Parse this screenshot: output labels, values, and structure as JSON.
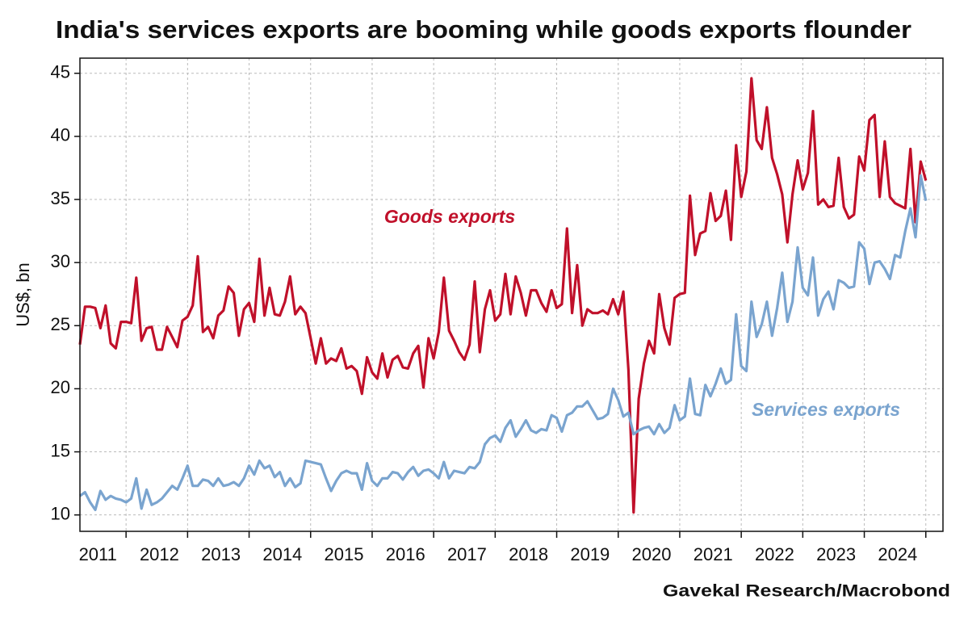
{
  "chart_data": {
    "type": "line",
    "title": "India's services exports are booming while goods exports flounder",
    "y_label": "US$, bn",
    "source": "Gavekal Research/Macrobond",
    "categories": [
      null,
      null,
      null,
      "2011",
      null,
      null,
      null,
      null,
      null,
      null,
      null,
      null,
      null,
      null,
      null,
      "2012",
      null,
      null,
      null,
      null,
      null,
      null,
      null,
      null,
      null,
      null,
      null,
      "2013",
      null,
      null,
      null,
      null,
      null,
      null,
      null,
      null,
      null,
      null,
      null,
      "2014",
      null,
      null,
      null,
      null,
      null,
      null,
      null,
      null,
      null,
      null,
      null,
      "2015",
      null,
      null,
      null,
      null,
      null,
      null,
      null,
      null,
      null,
      null,
      null,
      "2016",
      null,
      null,
      null,
      null,
      null,
      null,
      null,
      null,
      null,
      null,
      null,
      "2017",
      null,
      null,
      null,
      null,
      null,
      null,
      null,
      null,
      null,
      null,
      null,
      "2018",
      null,
      null,
      null,
      null,
      null,
      null,
      null,
      null,
      null,
      null,
      null,
      "2019",
      null,
      null,
      null,
      null,
      null,
      null,
      null,
      null,
      null,
      null,
      null,
      "2020",
      null,
      null,
      null,
      null,
      null,
      null,
      null,
      null,
      null,
      null,
      null,
      "2021",
      null,
      null,
      null,
      null,
      null,
      null,
      null,
      null,
      null,
      null,
      null,
      "2022",
      null,
      null,
      null,
      null,
      null,
      null,
      null,
      null,
      null,
      null,
      null,
      "2023",
      null,
      null,
      null,
      null,
      null,
      null,
      null,
      null,
      null,
      null,
      null,
      "2024",
      null,
      null,
      null,
      null,
      null,
      null
    ],
    "series": [
      {
        "name": "Goods exports",
        "color": "#c0102a",
        "values": [
          23.5,
          26.5,
          26.5,
          26.4,
          24.8,
          26.6,
          23.6,
          23.2,
          25.3,
          25.3,
          25.2,
          28.8,
          23.8,
          24.8,
          24.9,
          23.1,
          23.1,
          24.9,
          24.1,
          23.3,
          25.4,
          25.7,
          26.6,
          30.5,
          24.5,
          24.9,
          24.0,
          25.8,
          26.2,
          28.1,
          27.6,
          24.2,
          26.3,
          26.8,
          25.3,
          30.3,
          25.8,
          28.0,
          25.9,
          25.8,
          26.9,
          28.9,
          25.9,
          26.5,
          26.0,
          24.0,
          22.0,
          24.0,
          22.0,
          22.4,
          22.2,
          23.2,
          21.6,
          21.8,
          21.4,
          19.6,
          22.5,
          21.3,
          20.8,
          22.8,
          20.9,
          22.3,
          22.6,
          21.7,
          21.6,
          22.8,
          23.4,
          20.1,
          24.0,
          22.4,
          24.5,
          28.8,
          24.6,
          23.8,
          22.9,
          22.3,
          23.5,
          28.5,
          22.9,
          26.3,
          27.8,
          25.4,
          25.9,
          29.1,
          25.9,
          28.9,
          27.6,
          25.8,
          27.8,
          27.8,
          26.8,
          26.1,
          27.8,
          26.4,
          26.7,
          32.7,
          26.0,
          29.8,
          25.0,
          26.3,
          26.0,
          26.0,
          26.2,
          25.9,
          27.1,
          25.9,
          27.7,
          21.5,
          10.2,
          19.2,
          22.0,
          23.8,
          22.8,
          27.5,
          24.8,
          23.5,
          27.2,
          27.5,
          27.6,
          35.3,
          30.6,
          32.3,
          32.5,
          35.5,
          33.3,
          33.7,
          35.7,
          31.8,
          39.3,
          35.2,
          37.2,
          44.6,
          39.7,
          39.0,
          42.3,
          38.3,
          37.0,
          35.4,
          31.6,
          35.4,
          38.1,
          35.8,
          37.1,
          42.0,
          34.6,
          35.0,
          34.4,
          34.5,
          38.3,
          34.4,
          33.5,
          33.8,
          38.4,
          37.3,
          41.3,
          41.7,
          35.2,
          39.6,
          35.2,
          34.7,
          34.5,
          34.3,
          39.0,
          33.2,
          38.0,
          36.5
        ]
      },
      {
        "name": "Services exports",
        "color": "#7aa4cf",
        "values": [
          11.5,
          11.8,
          11.0,
          10.4,
          11.9,
          11.2,
          11.5,
          11.3,
          11.2,
          11.0,
          11.3,
          12.9,
          10.5,
          12.0,
          10.8,
          11.0,
          11.3,
          11.8,
          12.3,
          12.0,
          12.9,
          13.9,
          12.3,
          12.3,
          12.8,
          12.7,
          12.3,
          12.9,
          12.3,
          12.4,
          12.6,
          12.3,
          12.9,
          13.9,
          13.2,
          14.3,
          13.7,
          13.9,
          13.0,
          13.4,
          12.3,
          12.9,
          12.2,
          12.5,
          14.3,
          14.2,
          14.1,
          14.0,
          12.9,
          11.9,
          12.7,
          13.3,
          13.5,
          13.3,
          13.3,
          12.0,
          14.1,
          12.7,
          12.3,
          12.9,
          12.9,
          13.4,
          13.3,
          12.8,
          13.4,
          13.8,
          13.1,
          13.5,
          13.6,
          13.3,
          12.9,
          14.2,
          12.9,
          13.5,
          13.4,
          13.3,
          13.8,
          13.7,
          14.2,
          15.6,
          16.1,
          16.3,
          15.8,
          16.9,
          17.5,
          16.2,
          16.8,
          17.5,
          16.7,
          16.5,
          16.8,
          16.7,
          17.9,
          17.7,
          16.6,
          17.9,
          18.1,
          18.6,
          18.6,
          19.0,
          18.3,
          17.6,
          17.7,
          18.0,
          20.0,
          19.1,
          17.8,
          18.1,
          16.4,
          16.7,
          16.9,
          17.0,
          16.4,
          17.2,
          16.5,
          16.9,
          18.7,
          17.5,
          17.8,
          20.8,
          18.0,
          17.9,
          20.3,
          19.4,
          20.4,
          21.6,
          20.4,
          20.7,
          25.9,
          21.8,
          21.4,
          26.9,
          24.1,
          25.1,
          26.9,
          24.2,
          26.4,
          29.2,
          25.3,
          26.9,
          31.2,
          28.0,
          27.4,
          30.4,
          25.8,
          27.1,
          27.7,
          26.3,
          28.6,
          28.4,
          28.0,
          28.1,
          31.6,
          31.1,
          28.3,
          30.0,
          30.1,
          29.5,
          28.7,
          30.6,
          30.4,
          32.5,
          34.3,
          32.0,
          36.9,
          34.9
        ]
      }
    ],
    "ylim": [
      8.7,
      46.2
    ],
    "yticks": [
      10,
      15,
      20,
      25,
      30,
      35,
      40,
      45
    ],
    "grid": true
  }
}
